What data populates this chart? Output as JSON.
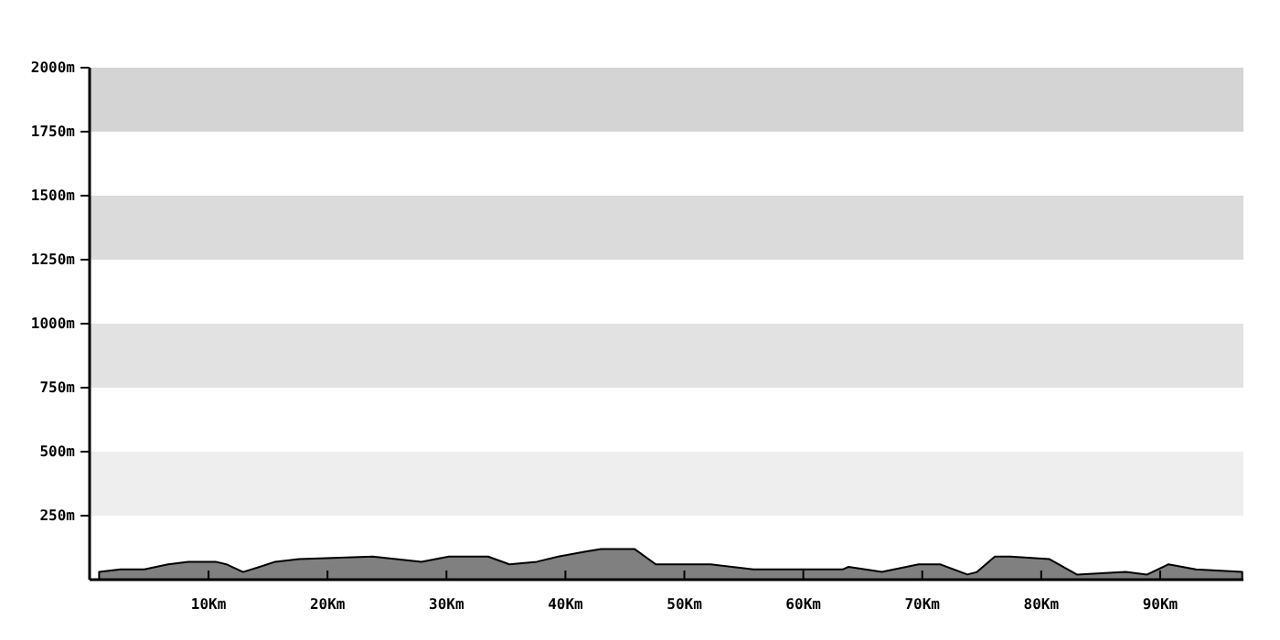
{
  "chart_data": {
    "type": "area",
    "x": [
      0.8,
      2.6,
      4.6,
      6.6,
      8.3,
      10.6,
      11.5,
      12.9,
      14.3,
      15.6,
      17.6,
      23.8,
      27.9,
      30.2,
      33.5,
      35.3,
      37.6,
      39.4,
      41.7,
      43.0,
      45.8,
      47.6,
      52.2,
      55.8,
      59.9,
      63.3,
      63.8,
      66.6,
      69.7,
      71.5,
      73.8,
      74.6,
      76.1,
      77.4,
      80.7,
      83.0,
      87.1,
      88.9,
      90.7,
      93.0,
      96.9
    ],
    "series": [
      {
        "color": "#808080",
        "values": [
          30,
          40,
          40,
          60,
          70,
          70,
          60,
          30,
          50,
          70,
          80,
          90,
          70,
          90,
          90,
          60,
          70,
          90,
          110,
          120,
          120,
          60,
          60,
          40,
          40,
          40,
          50,
          30,
          60,
          60,
          20,
          30,
          90,
          90,
          80,
          20,
          30,
          20,
          60,
          40,
          30
        ]
      }
    ],
    "bands": [
      {
        "axis": "y",
        "from": 1750,
        "to": 2000,
        "color": "#d4d4d4"
      },
      {
        "axis": "y",
        "from": 1250,
        "to": 1500,
        "color": "#dbdbdb"
      },
      {
        "axis": "y",
        "from": 750,
        "to": 1000,
        "color": "#e2e2e2"
      },
      {
        "axis": "y",
        "from": 250,
        "to": 500,
        "color": "#eeeeee"
      }
    ],
    "xlim": [
      0,
      97
    ],
    "xticks": [
      {
        "value": 10,
        "label": "10Km"
      },
      {
        "value": 20,
        "label": "20Km"
      },
      {
        "value": 30,
        "label": "30Km"
      },
      {
        "value": 40,
        "label": "40Km"
      },
      {
        "value": 50,
        "label": "50Km"
      },
      {
        "value": 60,
        "label": "60Km"
      },
      {
        "value": 70,
        "label": "70Km"
      },
      {
        "value": 80,
        "label": "80Km"
      },
      {
        "value": 90,
        "label": "90Km"
      }
    ],
    "ylim": [
      0,
      2000
    ],
    "yticks": [
      {
        "value": 250,
        "label": "250m"
      },
      {
        "value": 500,
        "label": "500m"
      },
      {
        "value": 750,
        "label": "750m"
      },
      {
        "value": 1000,
        "label": "1000m"
      },
      {
        "value": 1250,
        "label": "1250m"
      },
      {
        "value": 1500,
        "label": "1500m"
      },
      {
        "value": 1750,
        "label": "1750m"
      },
      {
        "value": 2000,
        "label": "2000m"
      }
    ]
  }
}
